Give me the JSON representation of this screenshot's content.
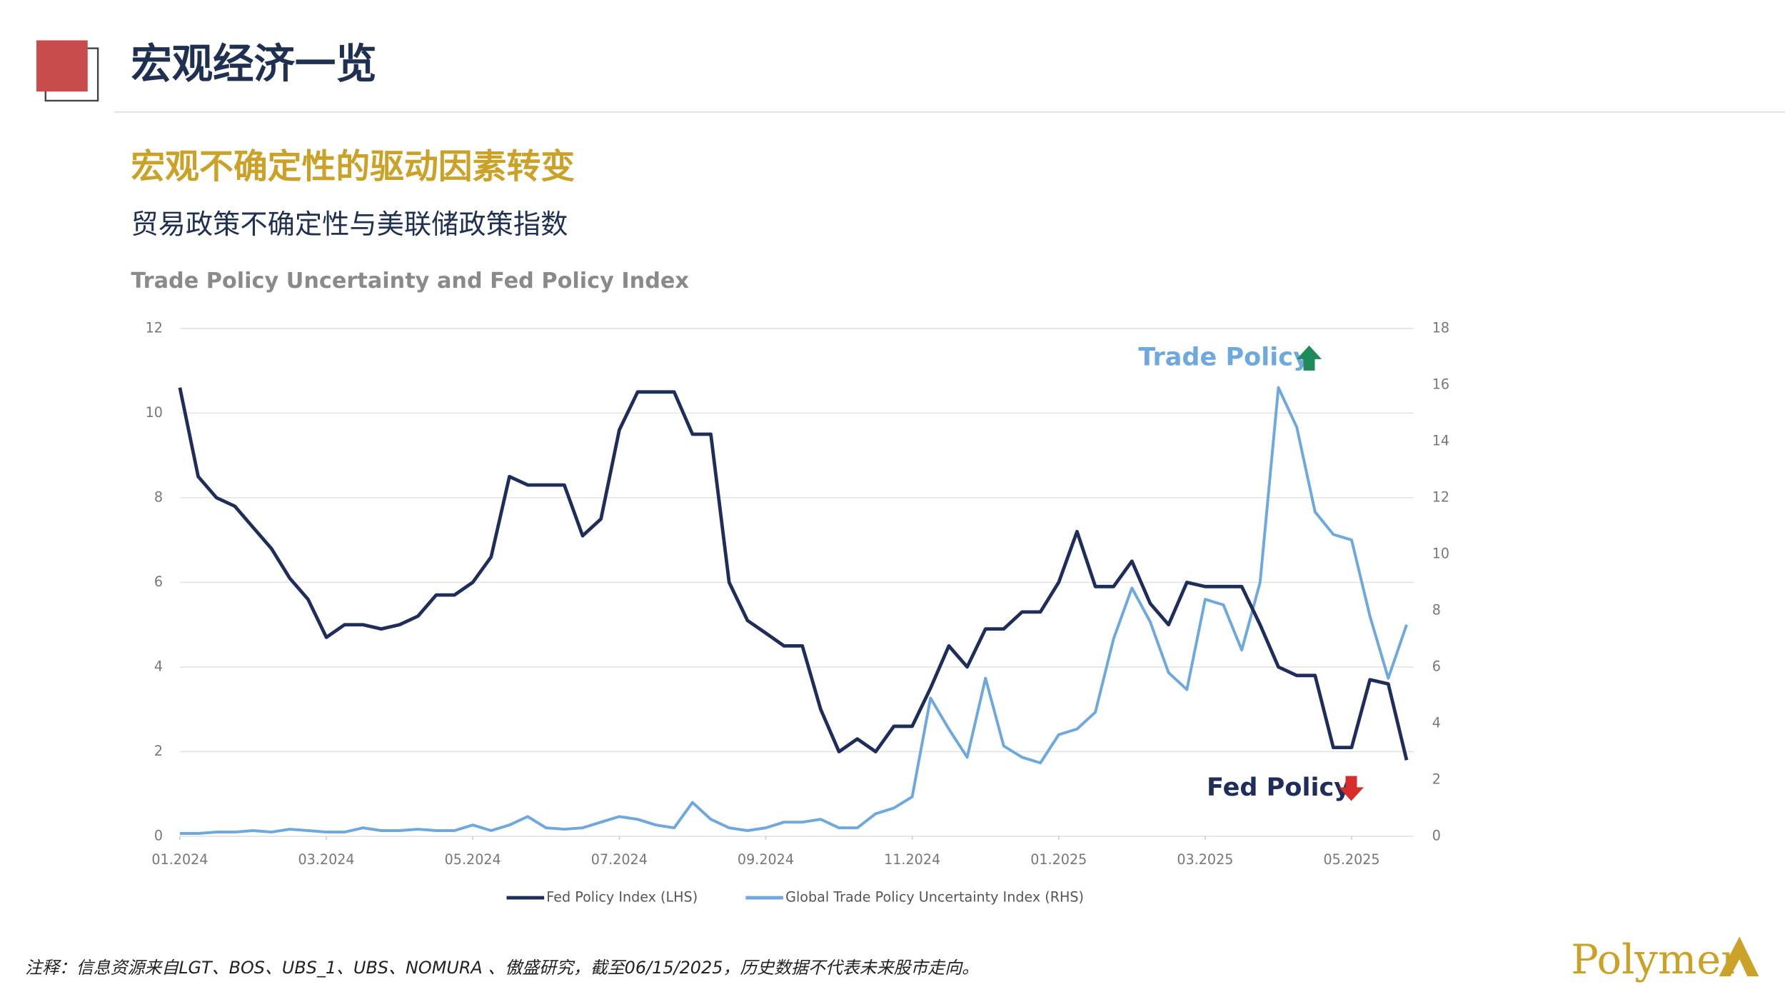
{
  "header": {
    "title": "宏观经济一览",
    "section_title": "宏观不确定性的驱动因素转变",
    "subtitle": "贸易政策不确定性与美联储政策指数"
  },
  "chart_data": {
    "type": "line",
    "title": "Trade Policy Uncertainty and Fed Policy Index",
    "annotations": [
      "Trade Policy",
      "Fed Policy"
    ],
    "x": [
      0,
      0.25,
      0.5,
      0.75,
      1,
      1.25,
      1.5,
      1.75,
      2,
      2.25,
      2.5,
      2.75,
      3,
      3.25,
      3.5,
      3.75,
      4,
      4.25,
      4.5,
      4.75,
      5,
      5.25,
      5.5,
      5.75,
      6,
      6.25,
      6.5,
      6.75,
      7,
      7.25,
      7.5,
      7.75,
      8,
      8.25,
      8.5,
      8.75,
      9,
      9.25,
      9.5,
      9.75,
      10,
      10.25,
      10.5,
      10.75,
      11,
      11.25,
      11.5,
      11.75,
      12,
      12.25,
      12.5,
      12.75,
      13,
      13.25,
      13.5,
      13.75,
      14,
      14.25,
      14.5,
      14.75,
      15,
      15.25,
      15.5,
      15.75,
      16,
      16.25,
      16.5,
      16.75
    ],
    "xlim": [
      0,
      16.85
    ],
    "xticks": [
      {
        "value": 0,
        "label": "01.2024"
      },
      {
        "value": 2,
        "label": "03.2024"
      },
      {
        "value": 4,
        "label": "05.2024"
      },
      {
        "value": 6,
        "label": "07.2024"
      },
      {
        "value": 8,
        "label": "09.2024"
      },
      {
        "value": 10,
        "label": "11.2024"
      },
      {
        "value": 12,
        "label": "01.2025"
      },
      {
        "value": 14,
        "label": "03.2025"
      },
      {
        "value": 16,
        "label": "05.2025"
      }
    ],
    "ylim": [
      0,
      12
    ],
    "yticks": [
      0,
      2,
      4,
      6,
      8,
      10,
      12
    ],
    "y2lim": [
      0,
      18
    ],
    "y2ticks": [
      0,
      2,
      4,
      6,
      8,
      10,
      12,
      14,
      16,
      18
    ],
    "grid": true,
    "series": [
      {
        "name": "Fed Policy Index (LHS)",
        "color": "#1f2d5a",
        "values": [
          10.6,
          8.5,
          8.0,
          7.8,
          7.3,
          6.8,
          6.1,
          5.6,
          4.7,
          5.0,
          5.0,
          4.9,
          5.0,
          5.2,
          5.7,
          5.7,
          6.0,
          6.6,
          8.5,
          8.3,
          8.3,
          8.3,
          7.1,
          7.5,
          9.6,
          10.5,
          10.5,
          10.5,
          9.5,
          9.5,
          6.0,
          5.1,
          4.8,
          4.5,
          4.5,
          3.0,
          2.0,
          2.3,
          2.0,
          2.6,
          2.6,
          3.5,
          4.5,
          4.0,
          4.9,
          4.9,
          5.3,
          5.3,
          6.0,
          7.2,
          5.9,
          5.9,
          6.5,
          5.5,
          5.0,
          6.0,
          5.9,
          5.9,
          5.9,
          5.0,
          4.0,
          3.8,
          3.8,
          2.1,
          2.1,
          3.7,
          3.6,
          1.8
        ]
      },
      {
        "name": "Global Trade Policy Uncertainty Index (RHS)",
        "color": "#6fa8dc",
        "axis": "y2",
        "values": [
          0.1,
          0.1,
          0.15,
          0.15,
          0.2,
          0.15,
          0.25,
          0.2,
          0.15,
          0.15,
          0.3,
          0.2,
          0.2,
          0.25,
          0.2,
          0.2,
          0.4,
          0.2,
          0.4,
          0.7,
          0.3,
          0.25,
          0.3,
          0.5,
          0.7,
          0.6,
          0.4,
          0.3,
          1.2,
          0.6,
          0.3,
          0.2,
          0.3,
          0.5,
          0.5,
          0.6,
          0.3,
          0.3,
          0.8,
          1.0,
          1.4,
          4.9,
          3.8,
          2.8,
          5.6,
          3.2,
          2.8,
          2.6,
          3.6,
          3.8,
          4.4,
          7.0,
          8.8,
          7.6,
          5.8,
          5.2,
          8.4,
          8.2,
          6.6,
          9.0,
          15.9,
          14.5,
          11.5,
          10.7,
          10.5,
          7.8,
          5.6,
          7.5
        ]
      }
    ]
  },
  "footnote": "注释：信息资源来自LGT、BOS、UBS_1、UBS、NOMURA 、傲盛研究，截至06/15/2025，历史数据不代表未来股市走向。",
  "logo": "Polymer"
}
